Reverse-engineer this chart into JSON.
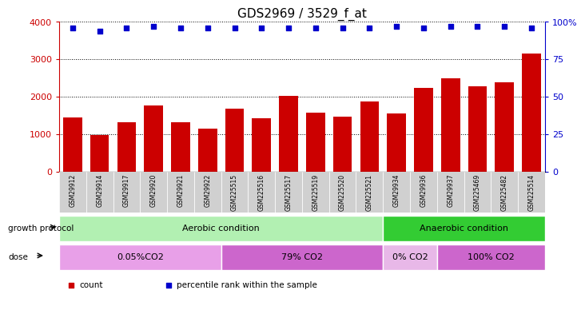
{
  "title": "GDS2969 / 3529_f_at",
  "samples": [
    "GSM29912",
    "GSM29914",
    "GSM29917",
    "GSM29920",
    "GSM29921",
    "GSM29922",
    "GSM225515",
    "GSM225516",
    "GSM225517",
    "GSM225519",
    "GSM225520",
    "GSM225521",
    "GSM29934",
    "GSM29936",
    "GSM29937",
    "GSM225469",
    "GSM225482",
    "GSM225514"
  ],
  "counts": [
    1450,
    980,
    1320,
    1760,
    1310,
    1150,
    1680,
    1430,
    2020,
    1580,
    1470,
    1870,
    1560,
    2230,
    2500,
    2290,
    2380,
    3150
  ],
  "percentile_left_vals": [
    3840,
    3760,
    3840,
    3880,
    3840,
    3840,
    3840,
    3840,
    3840,
    3840,
    3840,
    3840,
    3880,
    3840,
    3880,
    3880,
    3880,
    3840
  ],
  "bar_color": "#cc0000",
  "dot_color": "#0000cc",
  "ylim_left": [
    0,
    4000
  ],
  "ylim_right": [
    0,
    100
  ],
  "yticks_left": [
    0,
    1000,
    2000,
    3000,
    4000
  ],
  "yticks_right": [
    0,
    25,
    50,
    75,
    100
  ],
  "ytick_labels_right": [
    "0",
    "25",
    "50",
    "75",
    "100%"
  ],
  "growth_protocol_label": "growth protocol",
  "dose_label": "dose",
  "groups": [
    {
      "label": "Aerobic condition",
      "start": 0,
      "end": 11,
      "color": "#b2f0b2"
    },
    {
      "label": "Anaerobic condition",
      "start": 12,
      "end": 17,
      "color": "#33cc33"
    }
  ],
  "dose_groups": [
    {
      "label": "0.05%CO2",
      "start": 0,
      "end": 5,
      "color": "#e8a0e8"
    },
    {
      "label": "79% CO2",
      "start": 6,
      "end": 11,
      "color": "#cc66cc"
    },
    {
      "label": "0% CO2",
      "start": 12,
      "end": 13,
      "color": "#e8b8e8"
    },
    {
      "label": "100% CO2",
      "start": 14,
      "end": 17,
      "color": "#cc66cc"
    }
  ],
  "legend_items": [
    {
      "label": "count",
      "color": "#cc0000"
    },
    {
      "label": "percentile rank within the sample",
      "color": "#0000cc"
    }
  ],
  "xtick_bg": "#d0d0d0"
}
